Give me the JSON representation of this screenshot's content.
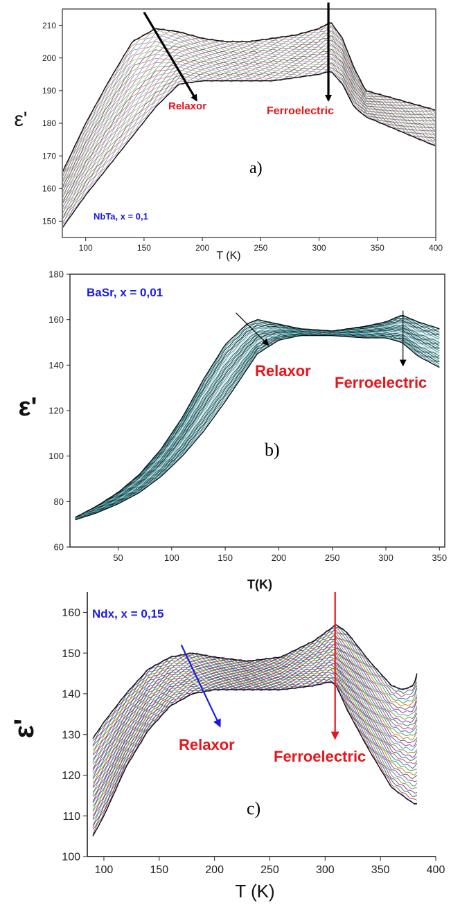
{
  "chart_data": [
    {
      "type": "line",
      "panel_letter": "a)",
      "sample_label": "NbTa, x = 0,1",
      "xlabel": "T (K)",
      "ylabel": "ε'",
      "xlim": [
        80,
        400
      ],
      "ylim": [
        145,
        215
      ],
      "xticks": [
        "100",
        "150",
        "200",
        "250",
        "300",
        "350",
        "400"
      ],
      "yticks": [
        "150",
        "160",
        "170",
        "180",
        "190",
        "200",
        "210"
      ],
      "annotations": [
        "Relaxor",
        "Ferroelectric"
      ],
      "series_curve": {
        "x": [
          80,
          100,
          120,
          140,
          160,
          180,
          200,
          220,
          240,
          260,
          280,
          300,
          310,
          320,
          330,
          340,
          360,
          380,
          400
        ],
        "upper": [
          165,
          180,
          193,
          205,
          209,
          208,
          206,
          205,
          205,
          206,
          207,
          209,
          211,
          206,
          197,
          190,
          188,
          186,
          184
        ],
        "lower": [
          148,
          158,
          167,
          176,
          185,
          192,
          193,
          193,
          193,
          193,
          194,
          195,
          196,
          192,
          185,
          182,
          179,
          176,
          173
        ]
      },
      "curve_count": 30,
      "arrows": [
        {
          "from": [
            150,
            214
          ],
          "to": [
            195,
            187
          ]
        },
        {
          "from": [
            308,
            217
          ],
          "to": [
            308,
            187
          ]
        }
      ]
    },
    {
      "type": "line",
      "panel_letter": "b)",
      "sample_label": "BaSr, x = 0,01",
      "xlabel": "T(K)",
      "ylabel": "ε'",
      "xlim": [
        5,
        355
      ],
      "ylim": [
        60,
        180
      ],
      "xticks": [
        "50",
        "100",
        "150",
        "200",
        "250",
        "300",
        "350"
      ],
      "yticks": [
        "60",
        "80",
        "100",
        "120",
        "140",
        "160",
        "180"
      ],
      "annotations": [
        "Relaxor",
        "Ferroelectric"
      ],
      "series_curve": {
        "x": [
          10,
          30,
          50,
          70,
          90,
          110,
          130,
          150,
          170,
          180,
          200,
          220,
          250,
          280,
          300,
          315,
          330,
          350
        ],
        "upper": [
          73,
          78,
          84,
          92,
          103,
          117,
          134,
          149,
          158,
          160,
          158,
          156,
          155,
          157,
          159,
          162,
          159,
          156
        ],
        "lower": [
          72,
          75,
          79,
          84,
          91,
          100,
          111,
          124,
          138,
          145,
          151,
          153,
          153,
          152,
          152,
          150,
          144,
          139
        ]
      },
      "curve_count": 24,
      "arrows": [
        {
          "from": [
            160,
            163
          ],
          "to": [
            190,
            149
          ]
        },
        {
          "from": [
            316,
            164
          ],
          "to": [
            316,
            140
          ]
        }
      ]
    },
    {
      "type": "line",
      "panel_letter": "c)",
      "sample_label": "Ndx, x = 0,15",
      "xlabel": "T (K)",
      "ylabel": "ε'",
      "xlim": [
        85,
        400
      ],
      "ylim": [
        100,
        165
      ],
      "xticks": [
        "100",
        "150",
        "200",
        "250",
        "300",
        "350",
        "400"
      ],
      "yticks": [
        "100",
        "110",
        "120",
        "130",
        "140",
        "150",
        "160"
      ],
      "annotations": [
        "Relaxor",
        "Ferroelectric"
      ],
      "series_curve": {
        "x": [
          90,
          100,
          120,
          140,
          160,
          180,
          200,
          230,
          260,
          290,
          305,
          310,
          320,
          340,
          360,
          370,
          380,
          383
        ],
        "upper": [
          129,
          133,
          140,
          146,
          149,
          150,
          149,
          148,
          149,
          153,
          156,
          157,
          155,
          148,
          142,
          141,
          142,
          145
        ],
        "lower": [
          105,
          110,
          122,
          131,
          137,
          140,
          141,
          141,
          141,
          142,
          143,
          142,
          136,
          126,
          117,
          115,
          113,
          113
        ]
      },
      "curve_count": 34,
      "arrows": [
        {
          "from": [
            170,
            152
          ],
          "to": [
            205,
            132
          ]
        },
        {
          "from": [
            309,
            165
          ],
          "to": [
            309,
            129
          ]
        }
      ]
    }
  ]
}
